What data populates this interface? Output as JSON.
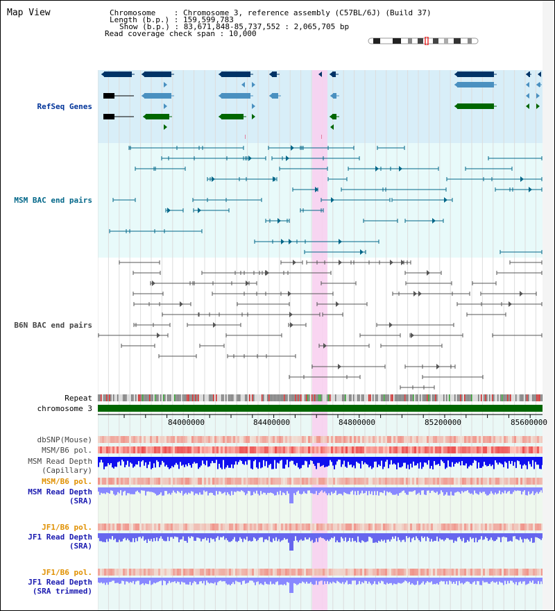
{
  "title": "Map View",
  "header": {
    "chromosome_label": "Chromosome",
    "chromosome_value": "Chromosome 3, reference assembly (C57BL/6J) (Build 37)",
    "length_label": "Length (b.p.)",
    "length_value": "159,599,783",
    "show_label": "Show (b.p.)",
    "show_value": "83,671,848-85,737,552 : 2,065,705 bp",
    "coverage_label": "Read coverage check span",
    "coverage_value": "10,000"
  },
  "tracks": {
    "refseq": "RefSeq Genes",
    "msm_bac": "MSM BAC end pairs",
    "b6n_bac": "B6N BAC end pairs",
    "repeat": "Repeat",
    "chromosome": "chromosome 3",
    "dbsnp": "dbSNP(Mouse)",
    "msm_b6_pol": "MSM/B6 pol.",
    "msm_read_depth_cap_1": "MSM Read Depth",
    "msm_read_depth_cap_2": "(Capillary)",
    "msm_b6_pol_2": "MSM/B6 pol.",
    "msm_read_depth_sra_1": "MSM Read Depth",
    "msm_read_depth_sra_2": "(SRA)",
    "jf1_b6_pol": "JF1/B6 pol.",
    "jf1_read_depth_1": "JF1 Read Depth",
    "jf1_read_depth_2": "(SRA)",
    "jf1_b6_pol_2": "JF1/B6 pol.",
    "jf1_read_depth_trim_1": "JF1 Read Depth",
    "jf1_read_depth_trim_2": "(SRA trimmed)"
  },
  "axis": {
    "ticks": [
      "84000000",
      "84400000",
      "84800000",
      "85200000",
      "85600000"
    ]
  },
  "colors": {
    "refseq_bg": "#d8eef8",
    "bac_bg": "#e8f8f8",
    "highlight": "#f8d0f0",
    "gene_dark": "#003366",
    "gene_mid": "#4a90c0",
    "gene_green": "#006600",
    "chrom_green": "#006600"
  }
}
